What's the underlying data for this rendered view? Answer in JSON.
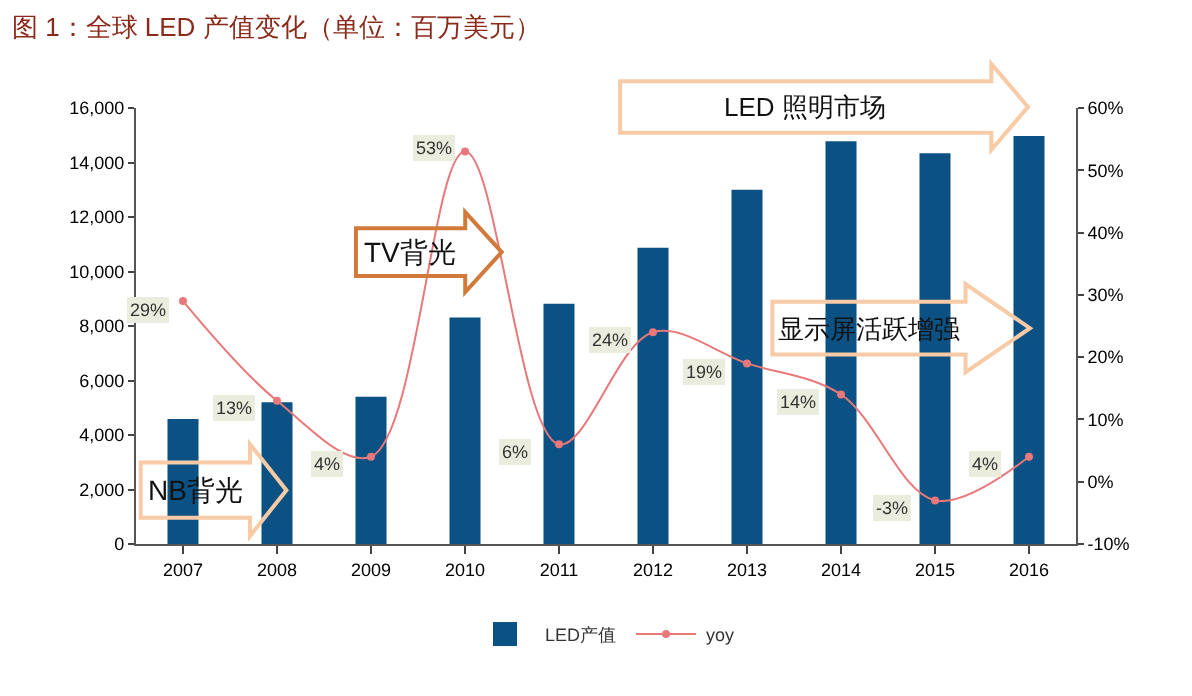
{
  "chart_data": {
    "type": "bar",
    "title": "图 1：全球 LED 产值变化（单位：百万美元）",
    "categories": [
      "2007",
      "2008",
      "2009",
      "2010",
      "2011",
      "2012",
      "2013",
      "2014",
      "2015",
      "2016"
    ],
    "series": [
      {
        "name": "LED产值",
        "color": "#0b5183",
        "values": [
          4590,
          5200,
          5400,
          8310,
          8820,
          10870,
          13000,
          14780,
          14340,
          14970
        ]
      },
      {
        "name": "yoy",
        "type": "line",
        "axis": "y2",
        "color": "#e8787a",
        "marker": "circle",
        "values": [
          29,
          13,
          4,
          53,
          6,
          24,
          19,
          14,
          -3,
          4
        ],
        "value_labels": [
          "29%",
          "13%",
          "4%",
          "53%",
          "6%",
          "24%",
          "19%",
          "14%",
          "-3%",
          "4%"
        ]
      }
    ],
    "ylim": [
      0,
      16000
    ],
    "yticks": [
      0,
      {
        "value": 2000,
        "label": "2,000"
      },
      {
        "value": 4000,
        "label": "4,000"
      },
      {
        "value": 6000,
        "label": "6,000"
      },
      {
        "value": 8000,
        "label": "8,000"
      },
      {
        "value": 10000,
        "label": "10,000"
      },
      {
        "value": 12000,
        "label": "12,000"
      },
      {
        "value": 14000,
        "label": "14,000"
      },
      {
        "value": 16000,
        "label": "16,000"
      }
    ],
    "y2lim": [
      -10,
      60
    ],
    "y2ticks": [
      {
        "value": -10,
        "label": "-10%"
      },
      {
        "value": 0,
        "label": "0%"
      },
      {
        "value": 10,
        "label": "10%"
      },
      {
        "value": 20,
        "label": "20%"
      },
      {
        "value": 30,
        "label": "30%"
      },
      {
        "value": 40,
        "label": "40%"
      },
      {
        "value": 50,
        "label": "50%"
      },
      {
        "value": 60,
        "label": "60%"
      }
    ],
    "annotations": [
      "NB背光",
      "TV背光",
      "LED 照明市场",
      "显示屏活跃增强"
    ],
    "grid": false,
    "legend": "bottom"
  }
}
